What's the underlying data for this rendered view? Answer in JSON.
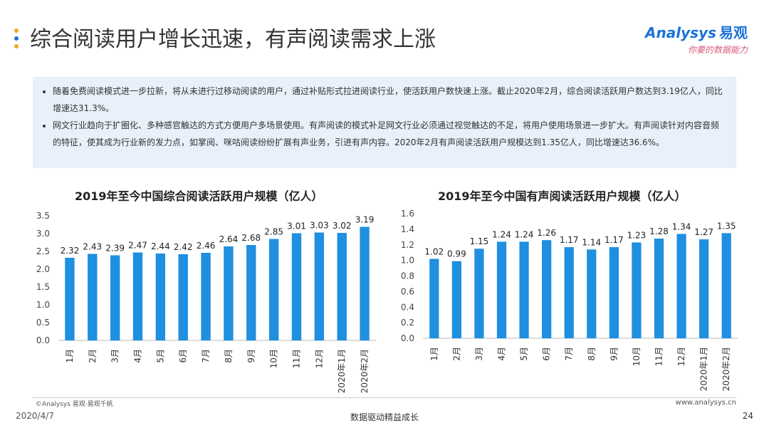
{
  "header": {
    "title": "综合阅读用户增长迅速，有声阅读需求上涨",
    "logo_brand": "Analysys",
    "logo_cn": "易观",
    "logo_slogan": "你要的数据能力",
    "dot_colors": [
      "#f5a623",
      "#1a73d9",
      "#f5a623"
    ]
  },
  "notes": [
    "随着免费阅读模式进一步拉新，将从未进行过移动阅读的用户，通过补贴形式拉进阅读行业，使活跃用户数快速上涨。截止2020年2月，综合阅读活跃用户数达到3.19亿人，同比增速达31.3%。",
    "网文行业趋向于扩圈化、多种感官触达的方式方便用户多场景使用。有声阅读的模式补足网文行业必须通过视觉触达的不足，将用户使用场景进一步扩大。有声阅读针对内容音频的特征，使其成为行业新的发力点，如掌阅、咪咕阅读纷纷扩展有声业务，引进有声内容。2020年2月有声阅读活跃用户规模达到1.35亿人，同比增速达36.6%。"
  ],
  "chart_data": [
    {
      "type": "bar",
      "title": "2019年至今中国综合阅读活跃用户规模（亿人）",
      "categories": [
        "1月",
        "2月",
        "3月",
        "4月",
        "5月",
        "6月",
        "7月",
        "8月",
        "9月",
        "10月",
        "11月",
        "12月",
        "2020年1月",
        "2020年2月"
      ],
      "values": [
        2.32,
        2.43,
        2.39,
        2.47,
        2.44,
        2.42,
        2.46,
        2.64,
        2.68,
        2.85,
        3.01,
        3.03,
        3.02,
        3.19
      ],
      "ylim": [
        0,
        3.5
      ],
      "yticks": [
        "0.0",
        "0.5",
        "1.0",
        "1.5",
        "2.0",
        "2.5",
        "3.0",
        "3.5"
      ],
      "color": "#1f8fe0",
      "grid": false
    },
    {
      "type": "bar",
      "title": "2019年至今中国有声阅读活跃用户规模（亿人）",
      "categories": [
        "1月",
        "2月",
        "3月",
        "4月",
        "5月",
        "6月",
        "7月",
        "8月",
        "9月",
        "10月",
        "11月",
        "12月",
        "2020年1月",
        "2020年2月"
      ],
      "values": [
        1.02,
        0.99,
        1.15,
        1.24,
        1.24,
        1.26,
        1.17,
        1.14,
        1.17,
        1.23,
        1.28,
        1.34,
        1.27,
        1.35
      ],
      "ylim": [
        0,
        1.6
      ],
      "yticks": [
        "0.0",
        "0.2",
        "0.4",
        "0.6",
        "0.8",
        "1.0",
        "1.2",
        "1.4",
        "1.6"
      ],
      "color": "#1f8fe0",
      "grid": false
    }
  ],
  "footer": {
    "copyright": "©Analysys 易观·易观千帆",
    "website": "www.analysys.cn",
    "date": "2020/4/7",
    "slogan": "数据驱动精益成长",
    "page": "24"
  }
}
